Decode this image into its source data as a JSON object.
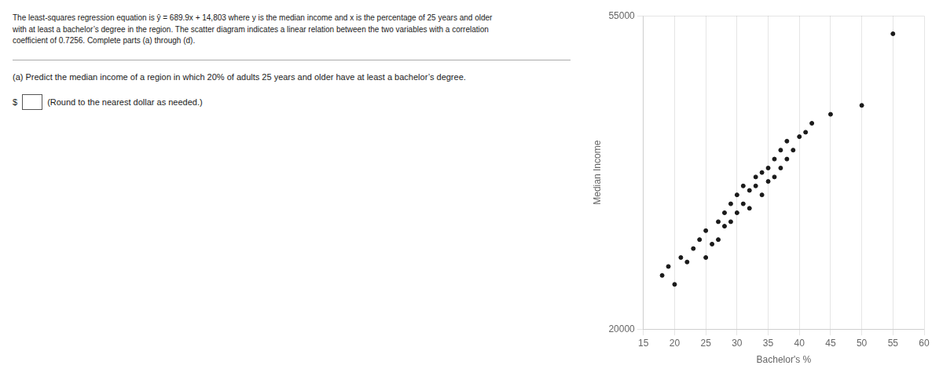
{
  "chart_data": {
    "type": "scatter",
    "annotations": [
      "The least-squares regression equation is ŷ = 689.9x + 14,803 where y is the median income and x is the percentage of 25 years and older\nwith at least a bachelor’s degree in the region. The scatter diagram indicates a linear relation between the two variables with a correlation\ncoefficient of 0.7256. Complete parts (a) through (d).",
      "(a) Predict the median income of a region in which 20% of adults 25 years and older have at least a bachelor’s degree.",
      "$",
      "(Round to the nearest dollar as needed.)"
    ],
    "xlabel": "Bachelor's %",
    "ylabel": "Median Income",
    "x": [
      18,
      19,
      20,
      21,
      22,
      23,
      24,
      25,
      25,
      26,
      27,
      27,
      28,
      28,
      29,
      29,
      30,
      30,
      31,
      31,
      32,
      32,
      33,
      33,
      34,
      34,
      35,
      35,
      36,
      36,
      37,
      37,
      38,
      38,
      39,
      40,
      41,
      42,
      45,
      50,
      55
    ],
    "values": [
      26000,
      27000,
      25000,
      28000,
      27500,
      29000,
      30000,
      28000,
      31000,
      29500,
      32000,
      30000,
      31500,
      33000,
      32000,
      34000,
      33000,
      35000,
      34000,
      36000,
      33500,
      35500,
      36000,
      37000,
      35000,
      37500,
      36500,
      38000,
      37000,
      39000,
      38000,
      40000,
      39000,
      41000,
      40000,
      41500,
      42000,
      43000,
      44000,
      45000,
      53000
    ],
    "color": "#1a1a1a",
    "xlim": [
      15,
      60
    ],
    "ylim": [
      20000,
      55000
    ],
    "xticks": [
      15,
      20,
      25,
      30,
      35,
      40,
      45,
      50,
      55,
      60
    ],
    "yticks": [
      20000,
      55000
    ],
    "grid": true
  }
}
